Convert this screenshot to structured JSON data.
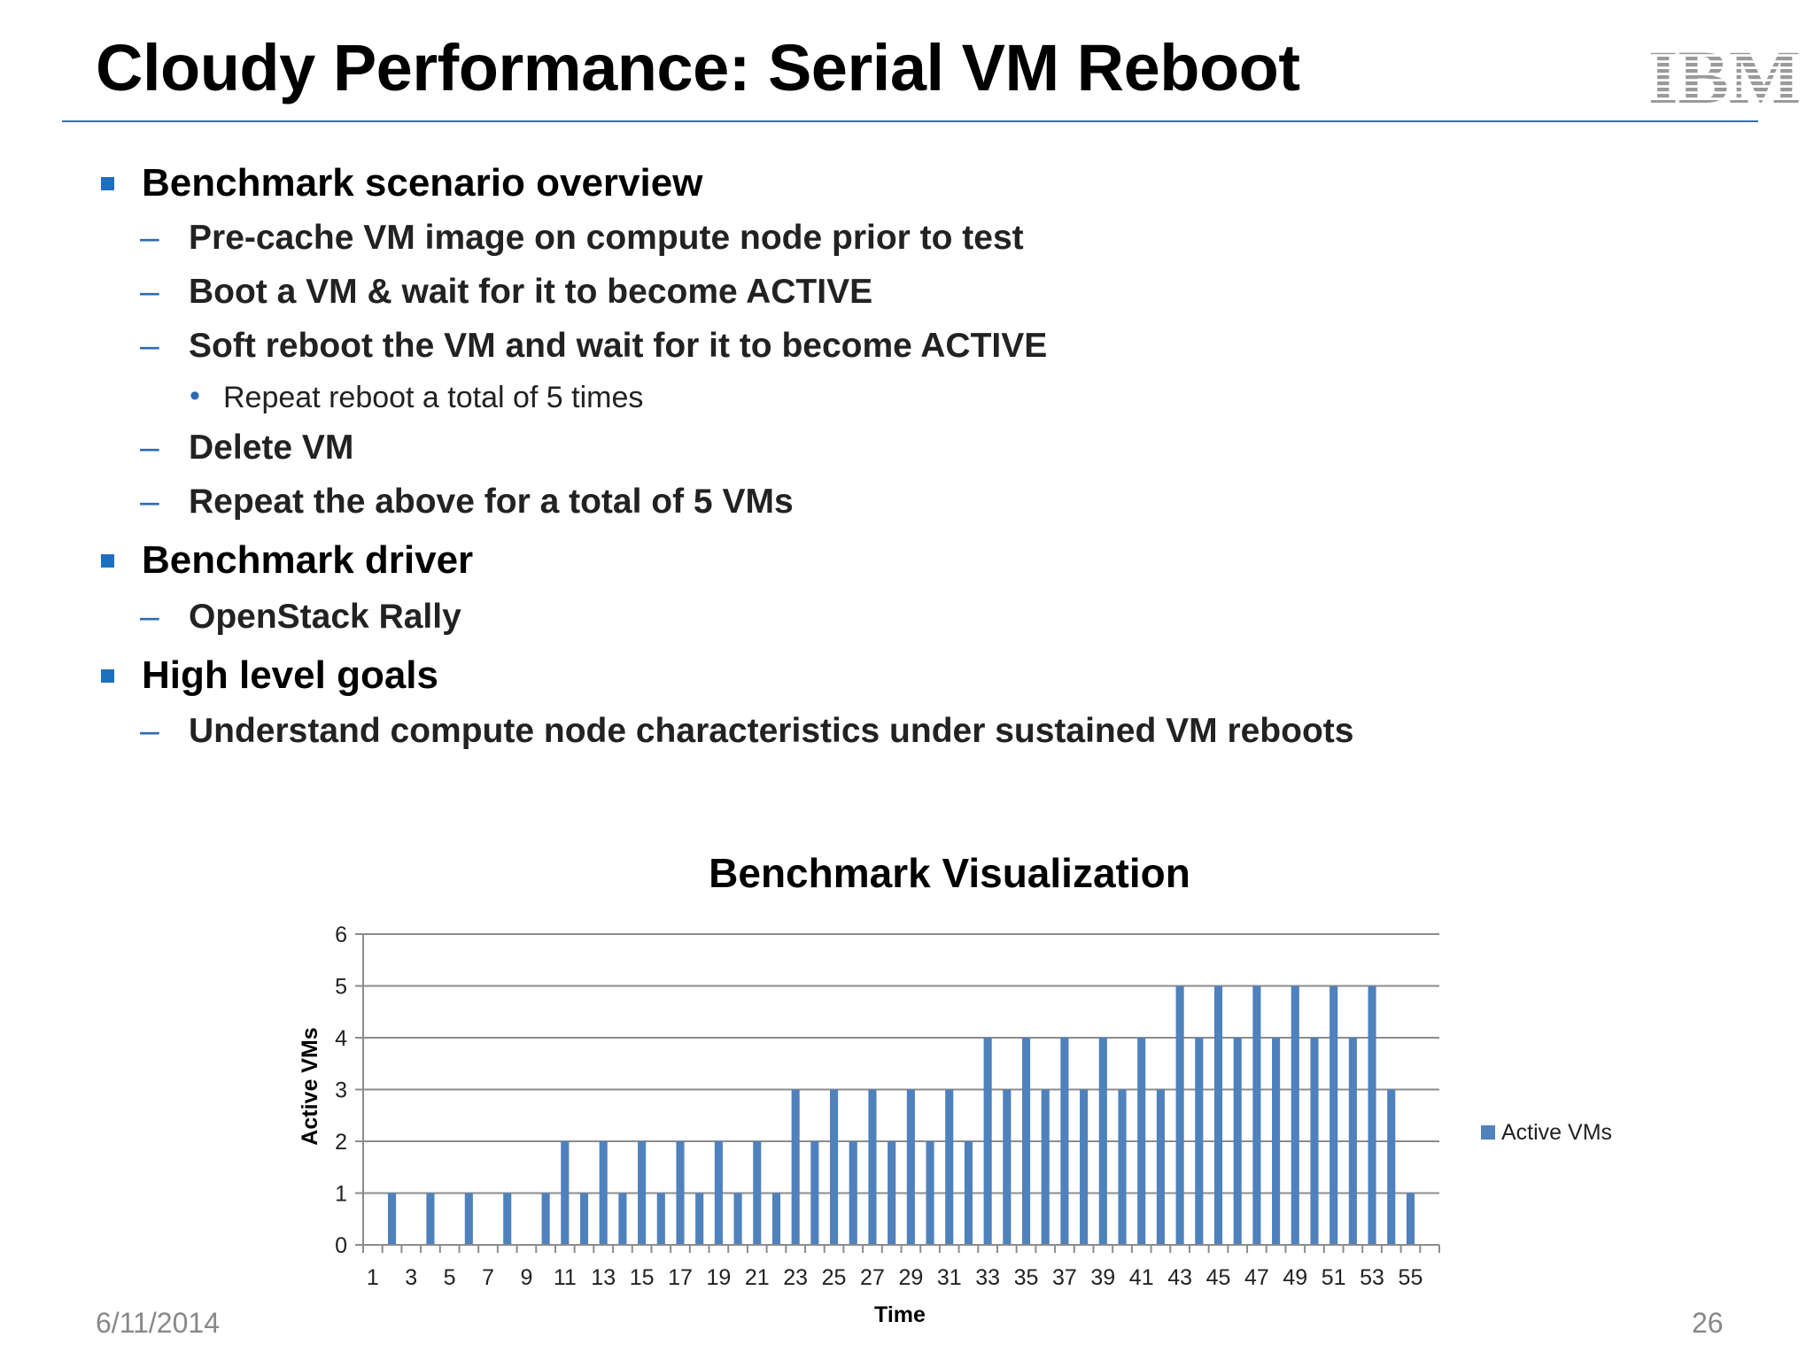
{
  "slide": {
    "title": "Cloudy Performance: Serial VM Reboot",
    "logo_text": "IBM",
    "date": "6/11/2014",
    "page_number": "26"
  },
  "bullets": {
    "overview": {
      "heading": "Benchmark scenario overview",
      "items": [
        "Pre-cache VM image on compute node prior to test",
        "Boot a VM & wait for it to become ACTIVE",
        "Soft reboot the VM and wait for it to become ACTIVE",
        "Repeat reboot a total of 5 times",
        "Delete VM",
        "Repeat the above for a total of 5 VMs"
      ]
    },
    "driver": {
      "heading": "Benchmark driver",
      "items": [
        "OpenStack Rally"
      ]
    },
    "goals": {
      "heading": "High level goals",
      "items": [
        "Understand compute node characteristics under sustained VM reboots"
      ]
    }
  },
  "colors": {
    "bar": "#4f81bd",
    "bullet_accent": "#1f6fbf",
    "rule": "#3a6fa8",
    "logo": "#9a9a9a"
  },
  "chart_data": {
    "type": "bar",
    "title": "Benchmark Visualization",
    "xlabel": "Time",
    "ylabel": "Active VMs",
    "ylim": [
      0,
      6
    ],
    "yticks": [
      0,
      1,
      2,
      3,
      4,
      5,
      6
    ],
    "grid": true,
    "legend_position": "right",
    "categories": [
      1,
      2,
      3,
      4,
      5,
      6,
      7,
      8,
      9,
      10,
      11,
      12,
      13,
      14,
      15,
      16,
      17,
      18,
      19,
      20,
      21,
      22,
      23,
      24,
      25,
      26,
      27,
      28,
      29,
      30,
      31,
      32,
      33,
      34,
      35,
      36,
      37,
      38,
      39,
      40,
      41,
      42,
      43,
      44,
      45,
      46,
      47,
      48,
      49,
      50,
      51,
      52,
      53,
      54,
      55,
      56
    ],
    "tick_labels": [
      "1",
      "3",
      "5",
      "7",
      "9",
      "11",
      "13",
      "15",
      "17",
      "19",
      "21",
      "23",
      "25",
      "27",
      "29",
      "31",
      "33",
      "35",
      "37",
      "39",
      "41",
      "43",
      "45",
      "47",
      "49",
      "51",
      "53",
      "55"
    ],
    "series": [
      {
        "name": "Active VMs",
        "values": [
          0,
          1,
          0,
          1,
          0,
          1,
          0,
          1,
          0,
          1,
          2,
          1,
          2,
          1,
          2,
          1,
          2,
          1,
          2,
          1,
          2,
          1,
          3,
          2,
          3,
          2,
          3,
          2,
          3,
          2,
          3,
          2,
          4,
          3,
          4,
          3,
          4,
          3,
          4,
          3,
          4,
          3,
          5,
          4,
          5,
          4,
          5,
          4,
          5,
          4,
          5,
          4,
          5,
          3,
          1,
          0
        ]
      }
    ]
  }
}
